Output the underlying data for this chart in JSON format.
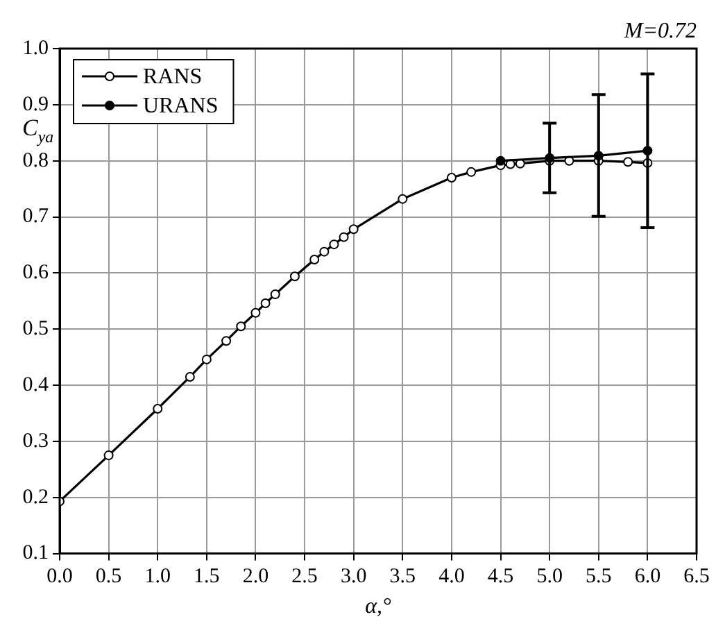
{
  "chart_data": {
    "type": "line",
    "xlabel": "α,°",
    "ylabel": "C$_{ya}$",
    "annotations": [
      "M=0.72"
    ],
    "xlim": [
      0,
      6.5
    ],
    "xticks": [
      {
        "value": 0,
        "label": "0.0"
      },
      0.5,
      {
        "value": 1,
        "label": "1.0"
      },
      1.5,
      {
        "value": 2,
        "label": "2.0"
      },
      2.5,
      {
        "value": 3,
        "label": "3.0"
      },
      3.5,
      {
        "value": 4,
        "label": "4.0"
      },
      4.5,
      {
        "value": 5,
        "label": "5.0"
      },
      5.5,
      {
        "value": 6,
        "label": "6.0"
      },
      6.5
    ],
    "ylim": [
      0.1,
      1.0
    ],
    "yticks": [
      0.1,
      0.2,
      0.3,
      0.4,
      0.5,
      0.6,
      0.7,
      0.8,
      0.9,
      {
        "value": 1,
        "label": "1.0"
      }
    ],
    "grid": true,
    "legend": "top left",
    "marker": "circle",
    "line_style": "solid",
    "series": [
      {
        "name": "RANS",
        "color": "#000000",
        "x": [
          0,
          0.5,
          1.0,
          1.33,
          1.5,
          1.7,
          1.85,
          2.0,
          2.1,
          2.2,
          2.4,
          2.6,
          2.7,
          2.8,
          2.9,
          3.0,
          3.5,
          4.0,
          4.2,
          4.5,
          4.6,
          4.7,
          5.0,
          5.2,
          5.5,
          5.8,
          6.0
        ],
        "values": [
          0.193,
          0.275,
          0.358,
          0.415,
          0.446,
          0.479,
          0.505,
          0.529,
          0.546,
          0.562,
          0.594,
          0.624,
          0.638,
          0.651,
          0.664,
          0.678,
          0.732,
          0.77,
          0.78,
          0.792,
          0.794,
          0.795,
          0.8,
          0.8,
          0.8,
          0.798,
          0.796
        ]
      },
      {
        "name": "URANS",
        "color": "#000000",
        "x": [
          4.5,
          5.0,
          5.5,
          6.0
        ],
        "values": [
          0.8,
          0.805,
          0.809,
          0.818
        ],
        "errors": [
          null,
          [
            0.743,
            0.867
          ],
          [
            0.701,
            0.918
          ],
          [
            0.681,
            0.955
          ]
        ]
      }
    ]
  }
}
